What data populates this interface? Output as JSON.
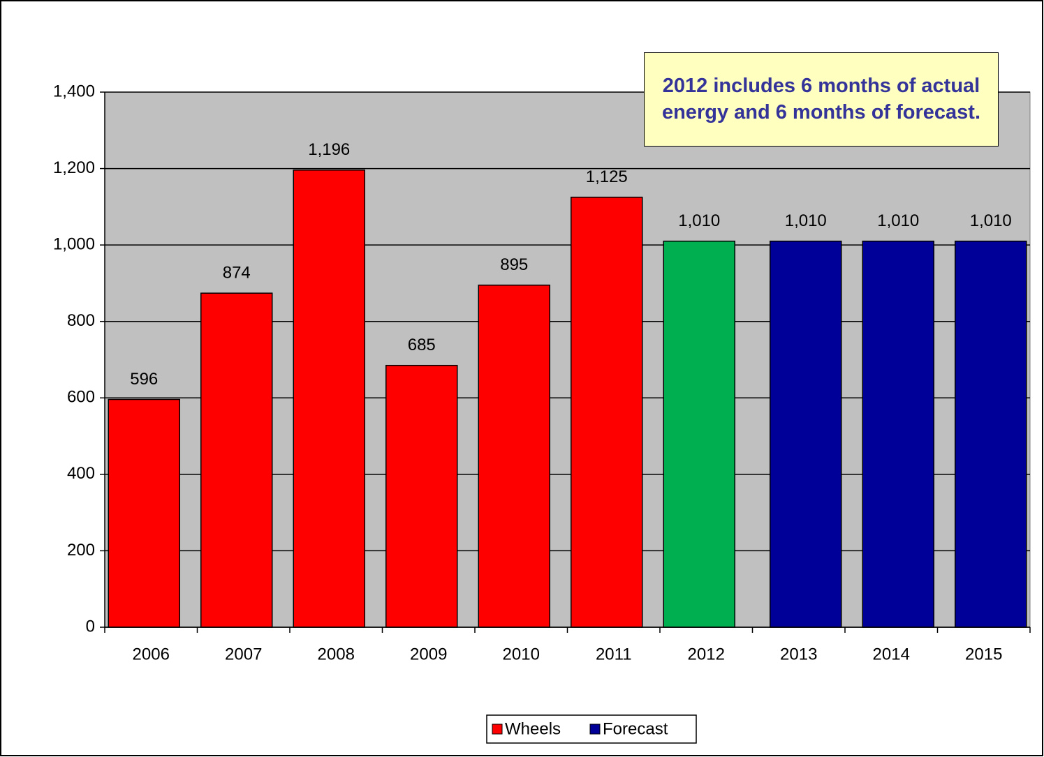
{
  "chart_data": {
    "type": "bar",
    "annotation": "2012 includes 6 months of actual energy and 6 months of forecast.",
    "categories": [
      "2006",
      "2007",
      "2008",
      "2009",
      "2010",
      "2011",
      "2012",
      "2013",
      "2014",
      "2015"
    ],
    "series": [
      {
        "name": "Wheels",
        "color": "#ff0000",
        "point_colors": [
          "#ff0000",
          "#ff0000",
          "#ff0000",
          "#ff0000",
          "#ff0000",
          "#ff0000",
          "#00b050",
          null,
          null,
          null
        ],
        "values": [
          596,
          874,
          1196,
          685,
          895,
          1125,
          1010,
          null,
          null,
          null
        ],
        "value_labels": [
          "596",
          "874",
          "1,196",
          "685",
          "895",
          "1,125",
          "1,010",
          null,
          null,
          null
        ]
      },
      {
        "name": "Forecast",
        "color": "#000099",
        "values": [
          null,
          null,
          null,
          null,
          null,
          null,
          null,
          1010,
          1010,
          1010
        ],
        "value_labels": [
          null,
          null,
          null,
          null,
          null,
          null,
          null,
          "1,010",
          "1,010",
          "1,010"
        ]
      }
    ],
    "ylim": [
      0,
      1400
    ],
    "yticks": [
      0,
      200,
      400,
      600,
      800,
      {
        "value": 1000,
        "label": "1,000"
      },
      {
        "value": 1200,
        "label": "1,200"
      },
      {
        "value": 1400,
        "label": "1,400"
      }
    ],
    "grid": true,
    "plot_background": "#c0c0c0",
    "legend": "bottom"
  }
}
